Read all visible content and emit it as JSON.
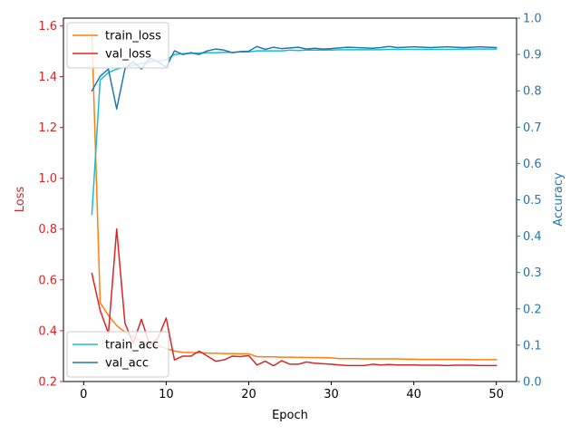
{
  "chart_data": {
    "type": "line",
    "xlabel": "Epoch",
    "ylabel_left": "Loss",
    "ylabel_right": "Accuracy",
    "xlim": [
      -2.45,
      52.45
    ],
    "ylim_left": [
      0.2,
      1.63
    ],
    "ylim_right": [
      0.0,
      1.0
    ],
    "x_ticks": [
      0,
      10,
      20,
      30,
      40,
      50
    ],
    "y_ticks_left": [
      0.2,
      0.4,
      0.6,
      0.8,
      1.0,
      1.2,
      1.4,
      1.6
    ],
    "y_ticks_right": [
      0.0,
      0.1,
      0.2,
      0.3,
      0.4,
      0.5,
      0.6,
      0.7,
      0.8,
      0.9,
      1.0
    ],
    "colors": {
      "loss_axis": "#d62728",
      "acc_axis": "#1f77b4"
    },
    "legend_loss": {
      "placement": "upper-left"
    },
    "legend_acc": {
      "placement": "lower-left"
    },
    "x": [
      1,
      2,
      3,
      4,
      5,
      6,
      7,
      8,
      9,
      10,
      11,
      12,
      13,
      14,
      15,
      16,
      17,
      18,
      19,
      20,
      21,
      22,
      23,
      24,
      25,
      26,
      27,
      28,
      29,
      30,
      31,
      32,
      33,
      34,
      35,
      36,
      37,
      38,
      39,
      40,
      41,
      42,
      43,
      44,
      45,
      46,
      47,
      48,
      49,
      50
    ],
    "series": [
      {
        "name": "train_loss",
        "axis": "left",
        "color": "#ff7f0e",
        "values": [
          1.57,
          0.51,
          0.46,
          0.42,
          0.395,
          0.375,
          0.36,
          0.35,
          0.34,
          0.33,
          0.32,
          0.315,
          0.314,
          0.313,
          0.312,
          0.311,
          0.31,
          0.31,
          0.309,
          0.309,
          0.298,
          0.297,
          0.297,
          0.296,
          0.296,
          0.295,
          0.295,
          0.294,
          0.294,
          0.293,
          0.29,
          0.29,
          0.29,
          0.289,
          0.289,
          0.289,
          0.289,
          0.289,
          0.288,
          0.288,
          0.287,
          0.287,
          0.287,
          0.287,
          0.287,
          0.287,
          0.286,
          0.286,
          0.286,
          0.286
        ]
      },
      {
        "name": "val_loss",
        "axis": "left",
        "color": "#d62728",
        "values": [
          0.625,
          0.48,
          0.39,
          0.8,
          0.43,
          0.35,
          0.445,
          0.345,
          0.37,
          0.45,
          0.285,
          0.3,
          0.3,
          0.32,
          0.3,
          0.28,
          0.285,
          0.3,
          0.298,
          0.302,
          0.265,
          0.28,
          0.262,
          0.282,
          0.268,
          0.268,
          0.277,
          0.272,
          0.27,
          0.268,
          0.265,
          0.263,
          0.263,
          0.263,
          0.268,
          0.265,
          0.267,
          0.265,
          0.265,
          0.265,
          0.264,
          0.264,
          0.264,
          0.263,
          0.264,
          0.264,
          0.264,
          0.263,
          0.263,
          0.263
        ]
      },
      {
        "name": "train_acc",
        "axis": "right",
        "color": "#17becf",
        "values": [
          0.46,
          0.83,
          0.85,
          0.86,
          0.865,
          0.87,
          0.875,
          0.88,
          0.882,
          0.885,
          0.9,
          0.902,
          0.903,
          0.904,
          0.905,
          0.905,
          0.906,
          0.906,
          0.907,
          0.907,
          0.91,
          0.91,
          0.91,
          0.91,
          0.912,
          0.911,
          0.912,
          0.912,
          0.912,
          0.912,
          0.913,
          0.913,
          0.913,
          0.913,
          0.913,
          0.913,
          0.914,
          0.914,
          0.914,
          0.914,
          0.914,
          0.914,
          0.914,
          0.914,
          0.914,
          0.915,
          0.915,
          0.915,
          0.915,
          0.915
        ]
      },
      {
        "name": "val_acc",
        "axis": "right",
        "color": "#1f77b4",
        "values": [
          0.8,
          0.84,
          0.86,
          0.75,
          0.86,
          0.88,
          0.86,
          0.89,
          0.88,
          0.865,
          0.91,
          0.9,
          0.905,
          0.9,
          0.91,
          0.915,
          0.912,
          0.905,
          0.908,
          0.909,
          0.922,
          0.914,
          0.92,
          0.916,
          0.918,
          0.92,
          0.915,
          0.917,
          0.915,
          0.916,
          0.918,
          0.92,
          0.919,
          0.918,
          0.917,
          0.919,
          0.922,
          0.919,
          0.92,
          0.921,
          0.92,
          0.919,
          0.92,
          0.921,
          0.92,
          0.919,
          0.92,
          0.921,
          0.92,
          0.919
        ]
      }
    ]
  }
}
